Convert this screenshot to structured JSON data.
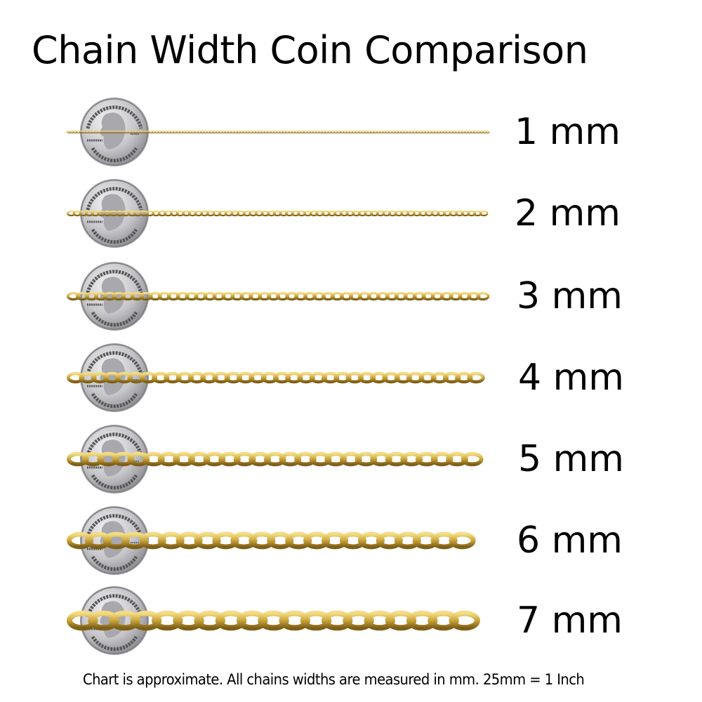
{
  "title": "Chain Width Coin Comparison",
  "coin_lettering": {
    "top": "UNITED STATES OF AMERICA",
    "left": "LIBERTY",
    "right": "IN GOD WE TRUST",
    "bottom": "QUARTER DOLLAR"
  },
  "rows": [
    {
      "label": "1 mm",
      "width_mm": 1
    },
    {
      "label": "2 mm",
      "width_mm": 2
    },
    {
      "label": "3 mm",
      "width_mm": 3
    },
    {
      "label": "4 mm",
      "width_mm": 4
    },
    {
      "label": "5 mm",
      "width_mm": 5
    },
    {
      "label": "6 mm",
      "width_mm": 6
    },
    {
      "label": "7 mm",
      "width_mm": 7
    }
  ],
  "footnote": "Chart is approximate. All chains widths are measured in mm.  25mm = 1 Inch",
  "colors": {
    "gold": "#c9a43a",
    "gold_dark": "#8f6f1c",
    "gold_light": "#f0d77a",
    "coin": "#c8c8cc"
  }
}
